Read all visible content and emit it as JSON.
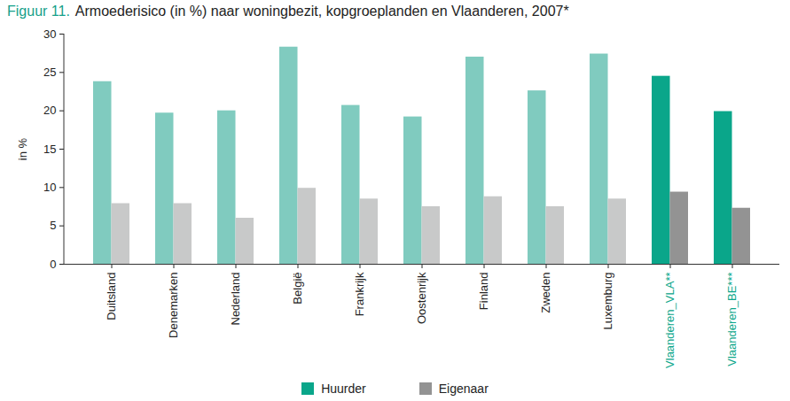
{
  "chart_data": {
    "type": "bar",
    "title": "Figuur 11. Armoederisico (in %) naar woningbezit, kopgroeplanden en Vlaanderen, 2007*",
    "y_label": "in %",
    "categories": [
      "Duitsland",
      "Denemarken",
      "Nederland",
      "België",
      "Frankrijk",
      "Oostenrijk",
      "Finland",
      "Zweden",
      "Luxemburg",
      "Vlaanderen_VLA**",
      "Vlaanderen_BE***"
    ],
    "series": [
      {
        "name": "Huurder",
        "color": "#0aa68a",
        "colors": [
          "#80cbbf",
          "#80cbbf",
          "#80cbbf",
          "#80cbbf",
          "#80cbbf",
          "#80cbbf",
          "#80cbbf",
          "#80cbbf",
          "#80cbbf",
          "#0aa68a",
          "#0aa68a"
        ],
        "values": [
          23.8,
          19.7,
          20.0,
          28.3,
          20.7,
          19.2,
          27.0,
          22.6,
          27.4,
          24.5,
          19.9
        ]
      },
      {
        "name": "Eigenaar",
        "color": "#939393",
        "colors": [
          "#c8c9c9",
          "#c8c9c9",
          "#c8c9c9",
          "#c8c9c9",
          "#c8c9c9",
          "#c8c9c9",
          "#c8c9c9",
          "#c8c9c9",
          "#c8c9c9",
          "#939393",
          "#939393"
        ],
        "values": [
          7.9,
          7.9,
          6.0,
          9.9,
          8.5,
          7.5,
          8.8,
          7.5,
          8.5,
          9.4,
          7.3
        ]
      }
    ],
    "ylim": [
      0,
      30
    ],
    "yticks": [
      0,
      5,
      10,
      15,
      20,
      25,
      30
    ],
    "grid": false,
    "legend": "bottom"
  }
}
